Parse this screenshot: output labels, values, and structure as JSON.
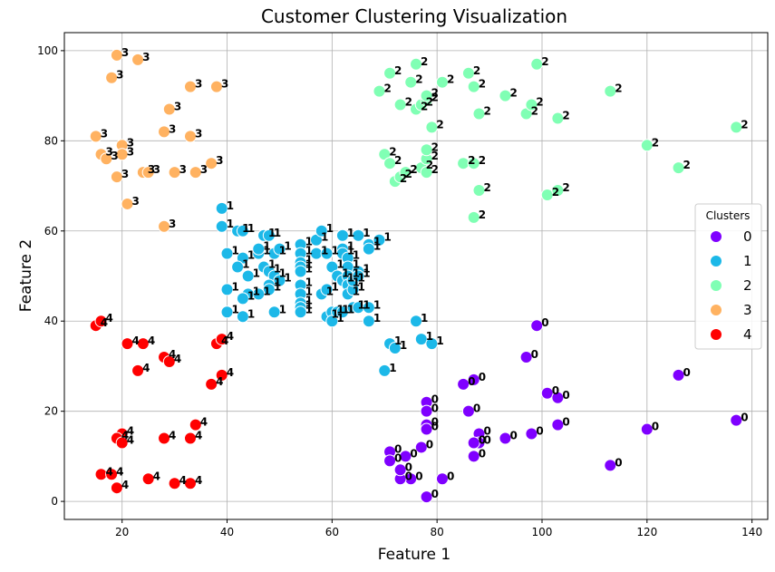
{
  "chart_data": {
    "type": "scatter",
    "title": "Customer Clustering Visualization",
    "xlabel": "Feature 1",
    "ylabel": "Feature 2",
    "xlim": [
      9,
      143
    ],
    "ylim": [
      -4,
      104
    ],
    "xticks": [
      20,
      40,
      60,
      80,
      100,
      120,
      140
    ],
    "yticks": [
      0,
      20,
      40,
      60,
      80,
      100
    ],
    "grid": true,
    "legend": {
      "title": "Clusters",
      "placement": "center-right"
    },
    "point_label_source": "cluster",
    "clusters": [
      {
        "name": "0",
        "color": "#7f00ff"
      },
      {
        "name": "1",
        "color": "#1cb8e8"
      },
      {
        "name": "2",
        "color": "#80ffb4"
      },
      {
        "name": "3",
        "color": "#ffb261"
      },
      {
        "name": "4",
        "color": "#ff0000"
      }
    ],
    "points": [
      {
        "x": 99,
        "y": 39,
        "c": 0
      },
      {
        "x": 97,
        "y": 32,
        "c": 0
      },
      {
        "x": 126,
        "y": 28,
        "c": 0
      },
      {
        "x": 137,
        "y": 18,
        "c": 0
      },
      {
        "x": 120,
        "y": 16,
        "c": 0
      },
      {
        "x": 113,
        "y": 8,
        "c": 0
      },
      {
        "x": 101,
        "y": 24,
        "c": 0
      },
      {
        "x": 103,
        "y": 23,
        "c": 0
      },
      {
        "x": 103,
        "y": 17,
        "c": 0
      },
      {
        "x": 98,
        "y": 15,
        "c": 0
      },
      {
        "x": 93,
        "y": 14,
        "c": 0
      },
      {
        "x": 88,
        "y": 15,
        "c": 0
      },
      {
        "x": 88,
        "y": 13,
        "c": 0
      },
      {
        "x": 87,
        "y": 13,
        "c": 0
      },
      {
        "x": 87,
        "y": 10,
        "c": 0
      },
      {
        "x": 87,
        "y": 27,
        "c": 0
      },
      {
        "x": 85,
        "y": 26,
        "c": 0
      },
      {
        "x": 86,
        "y": 20,
        "c": 0
      },
      {
        "x": 78,
        "y": 22,
        "c": 0
      },
      {
        "x": 78,
        "y": 20,
        "c": 0
      },
      {
        "x": 78,
        "y": 17,
        "c": 0
      },
      {
        "x": 78,
        "y": 16,
        "c": 0
      },
      {
        "x": 77,
        "y": 12,
        "c": 0
      },
      {
        "x": 81,
        "y": 5,
        "c": 0
      },
      {
        "x": 78,
        "y": 1,
        "c": 0
      },
      {
        "x": 75,
        "y": 5,
        "c": 0
      },
      {
        "x": 73,
        "y": 5,
        "c": 0
      },
      {
        "x": 73,
        "y": 7,
        "c": 0
      },
      {
        "x": 74,
        "y": 10,
        "c": 0
      },
      {
        "x": 71,
        "y": 11,
        "c": 0
      },
      {
        "x": 71,
        "y": 9,
        "c": 0
      },
      {
        "x": 39,
        "y": 65,
        "c": 1
      },
      {
        "x": 39,
        "y": 61,
        "c": 1
      },
      {
        "x": 42,
        "y": 60,
        "c": 1
      },
      {
        "x": 43,
        "y": 60,
        "c": 1
      },
      {
        "x": 40,
        "y": 55,
        "c": 1
      },
      {
        "x": 43,
        "y": 54,
        "c": 1
      },
      {
        "x": 42,
        "y": 52,
        "c": 1
      },
      {
        "x": 44,
        "y": 50,
        "c": 1
      },
      {
        "x": 46,
        "y": 55,
        "c": 1
      },
      {
        "x": 47,
        "y": 59,
        "c": 1
      },
      {
        "x": 48,
        "y": 59,
        "c": 1
      },
      {
        "x": 46,
        "y": 56,
        "c": 1
      },
      {
        "x": 49,
        "y": 55,
        "c": 1
      },
      {
        "x": 50,
        "y": 56,
        "c": 1
      },
      {
        "x": 47,
        "y": 52,
        "c": 1
      },
      {
        "x": 48,
        "y": 51,
        "c": 1
      },
      {
        "x": 49,
        "y": 50,
        "c": 1
      },
      {
        "x": 50,
        "y": 49,
        "c": 1
      },
      {
        "x": 48,
        "y": 48,
        "c": 1
      },
      {
        "x": 48,
        "y": 47,
        "c": 1
      },
      {
        "x": 46,
        "y": 46,
        "c": 1
      },
      {
        "x": 44,
        "y": 46,
        "c": 1
      },
      {
        "x": 43,
        "y": 45,
        "c": 1
      },
      {
        "x": 40,
        "y": 47,
        "c": 1
      },
      {
        "x": 40,
        "y": 42,
        "c": 1
      },
      {
        "x": 43,
        "y": 41,
        "c": 1
      },
      {
        "x": 49,
        "y": 42,
        "c": 1
      },
      {
        "x": 54,
        "y": 57,
        "c": 1
      },
      {
        "x": 54,
        "y": 55,
        "c": 1
      },
      {
        "x": 54,
        "y": 53,
        "c": 1
      },
      {
        "x": 54,
        "y": 52,
        "c": 1
      },
      {
        "x": 54,
        "y": 51,
        "c": 1
      },
      {
        "x": 54,
        "y": 48,
        "c": 1
      },
      {
        "x": 54,
        "y": 46,
        "c": 1
      },
      {
        "x": 54,
        "y": 44,
        "c": 1
      },
      {
        "x": 54,
        "y": 43,
        "c": 1
      },
      {
        "x": 54,
        "y": 42,
        "c": 1
      },
      {
        "x": 57,
        "y": 58,
        "c": 1
      },
      {
        "x": 58,
        "y": 60,
        "c": 1
      },
      {
        "x": 57,
        "y": 55,
        "c": 1
      },
      {
        "x": 59,
        "y": 55,
        "c": 1
      },
      {
        "x": 58,
        "y": 46,
        "c": 1
      },
      {
        "x": 59,
        "y": 47,
        "c": 1
      },
      {
        "x": 59,
        "y": 41,
        "c": 1
      },
      {
        "x": 60,
        "y": 42,
        "c": 1
      },
      {
        "x": 60,
        "y": 40,
        "c": 1
      },
      {
        "x": 61,
        "y": 42,
        "c": 1
      },
      {
        "x": 62,
        "y": 42,
        "c": 1
      },
      {
        "x": 62,
        "y": 59,
        "c": 1
      },
      {
        "x": 62,
        "y": 56,
        "c": 1
      },
      {
        "x": 62,
        "y": 55,
        "c": 1
      },
      {
        "x": 63,
        "y": 54,
        "c": 1
      },
      {
        "x": 63,
        "y": 52,
        "c": 1
      },
      {
        "x": 60,
        "y": 52,
        "c": 1
      },
      {
        "x": 61,
        "y": 50,
        "c": 1
      },
      {
        "x": 62,
        "y": 49,
        "c": 1
      },
      {
        "x": 63,
        "y": 50,
        "c": 1
      },
      {
        "x": 63,
        "y": 48,
        "c": 1
      },
      {
        "x": 63,
        "y": 46,
        "c": 1
      },
      {
        "x": 64,
        "y": 47,
        "c": 1
      },
      {
        "x": 64,
        "y": 49,
        "c": 1
      },
      {
        "x": 65,
        "y": 51,
        "c": 1
      },
      {
        "x": 65,
        "y": 50,
        "c": 1
      },
      {
        "x": 64,
        "y": 43,
        "c": 1
      },
      {
        "x": 65,
        "y": 43,
        "c": 1
      },
      {
        "x": 67,
        "y": 43,
        "c": 1
      },
      {
        "x": 67,
        "y": 40,
        "c": 1
      },
      {
        "x": 65,
        "y": 59,
        "c": 1
      },
      {
        "x": 67,
        "y": 57,
        "c": 1
      },
      {
        "x": 67,
        "y": 56,
        "c": 1
      },
      {
        "x": 69,
        "y": 58,
        "c": 1
      },
      {
        "x": 76,
        "y": 40,
        "c": 1
      },
      {
        "x": 71,
        "y": 35,
        "c": 1
      },
      {
        "x": 72,
        "y": 34,
        "c": 1
      },
      {
        "x": 77,
        "y": 36,
        "c": 1
      },
      {
        "x": 79,
        "y": 35,
        "c": 1
      },
      {
        "x": 70,
        "y": 29,
        "c": 1
      },
      {
        "x": 71,
        "y": 95,
        "c": 2
      },
      {
        "x": 76,
        "y": 97,
        "c": 2
      },
      {
        "x": 75,
        "y": 93,
        "c": 2
      },
      {
        "x": 69,
        "y": 91,
        "c": 2
      },
      {
        "x": 73,
        "y": 88,
        "c": 2
      },
      {
        "x": 76,
        "y": 87,
        "c": 2
      },
      {
        "x": 77,
        "y": 88,
        "c": 2
      },
      {
        "x": 78,
        "y": 89,
        "c": 2
      },
      {
        "x": 78,
        "y": 90,
        "c": 2
      },
      {
        "x": 79,
        "y": 83,
        "c": 2
      },
      {
        "x": 81,
        "y": 93,
        "c": 2
      },
      {
        "x": 86,
        "y": 95,
        "c": 2
      },
      {
        "x": 87,
        "y": 92,
        "c": 2
      },
      {
        "x": 88,
        "y": 86,
        "c": 2
      },
      {
        "x": 93,
        "y": 90,
        "c": 2
      },
      {
        "x": 97,
        "y": 86,
        "c": 2
      },
      {
        "x": 98,
        "y": 88,
        "c": 2
      },
      {
        "x": 99,
        "y": 97,
        "c": 2
      },
      {
        "x": 103,
        "y": 85,
        "c": 2
      },
      {
        "x": 113,
        "y": 91,
        "c": 2
      },
      {
        "x": 120,
        "y": 79,
        "c": 2
      },
      {
        "x": 137,
        "y": 83,
        "c": 2
      },
      {
        "x": 126,
        "y": 74,
        "c": 2
      },
      {
        "x": 70,
        "y": 77,
        "c": 2
      },
      {
        "x": 71,
        "y": 75,
        "c": 2
      },
      {
        "x": 72,
        "y": 71,
        "c": 2
      },
      {
        "x": 73,
        "y": 72,
        "c": 2
      },
      {
        "x": 74,
        "y": 73,
        "c": 2
      },
      {
        "x": 77,
        "y": 74,
        "c": 2
      },
      {
        "x": 78,
        "y": 73,
        "c": 2
      },
      {
        "x": 78,
        "y": 76,
        "c": 2
      },
      {
        "x": 78,
        "y": 78,
        "c": 2
      },
      {
        "x": 85,
        "y": 75,
        "c": 2
      },
      {
        "x": 87,
        "y": 75,
        "c": 2
      },
      {
        "x": 88,
        "y": 69,
        "c": 2
      },
      {
        "x": 87,
        "y": 63,
        "c": 2
      },
      {
        "x": 101,
        "y": 68,
        "c": 2
      },
      {
        "x": 103,
        "y": 69,
        "c": 2
      },
      {
        "x": 19,
        "y": 99,
        "c": 3
      },
      {
        "x": 23,
        "y": 98,
        "c": 3
      },
      {
        "x": 18,
        "y": 94,
        "c": 3
      },
      {
        "x": 33,
        "y": 92,
        "c": 3
      },
      {
        "x": 38,
        "y": 92,
        "c": 3
      },
      {
        "x": 29,
        "y": 87,
        "c": 3
      },
      {
        "x": 28,
        "y": 82,
        "c": 3
      },
      {
        "x": 33,
        "y": 81,
        "c": 3
      },
      {
        "x": 15,
        "y": 81,
        "c": 3
      },
      {
        "x": 20,
        "y": 79,
        "c": 3
      },
      {
        "x": 20,
        "y": 77,
        "c": 3
      },
      {
        "x": 16,
        "y": 77,
        "c": 3
      },
      {
        "x": 17,
        "y": 76,
        "c": 3
      },
      {
        "x": 19,
        "y": 72,
        "c": 3
      },
      {
        "x": 24,
        "y": 73,
        "c": 3
      },
      {
        "x": 25,
        "y": 73,
        "c": 3
      },
      {
        "x": 30,
        "y": 73,
        "c": 3
      },
      {
        "x": 34,
        "y": 73,
        "c": 3
      },
      {
        "x": 37,
        "y": 75,
        "c": 3
      },
      {
        "x": 21,
        "y": 66,
        "c": 3
      },
      {
        "x": 28,
        "y": 61,
        "c": 3
      },
      {
        "x": 15,
        "y": 39,
        "c": 4
      },
      {
        "x": 16,
        "y": 40,
        "c": 4
      },
      {
        "x": 21,
        "y": 35,
        "c": 4
      },
      {
        "x": 24,
        "y": 35,
        "c": 4
      },
      {
        "x": 23,
        "y": 29,
        "c": 4
      },
      {
        "x": 28,
        "y": 32,
        "c": 4
      },
      {
        "x": 29,
        "y": 31,
        "c": 4
      },
      {
        "x": 38,
        "y": 35,
        "c": 4
      },
      {
        "x": 39,
        "y": 36,
        "c": 4
      },
      {
        "x": 39,
        "y": 28,
        "c": 4
      },
      {
        "x": 37,
        "y": 26,
        "c": 4
      },
      {
        "x": 20,
        "y": 15,
        "c": 4
      },
      {
        "x": 19,
        "y": 14,
        "c": 4
      },
      {
        "x": 20,
        "y": 13,
        "c": 4
      },
      {
        "x": 34,
        "y": 17,
        "c": 4
      },
      {
        "x": 33,
        "y": 14,
        "c": 4
      },
      {
        "x": 28,
        "y": 14,
        "c": 4
      },
      {
        "x": 16,
        "y": 6,
        "c": 4
      },
      {
        "x": 18,
        "y": 6,
        "c": 4
      },
      {
        "x": 25,
        "y": 5,
        "c": 4
      },
      {
        "x": 30,
        "y": 4,
        "c": 4
      },
      {
        "x": 33,
        "y": 4,
        "c": 4
      },
      {
        "x": 19,
        "y": 3,
        "c": 4
      }
    ]
  }
}
